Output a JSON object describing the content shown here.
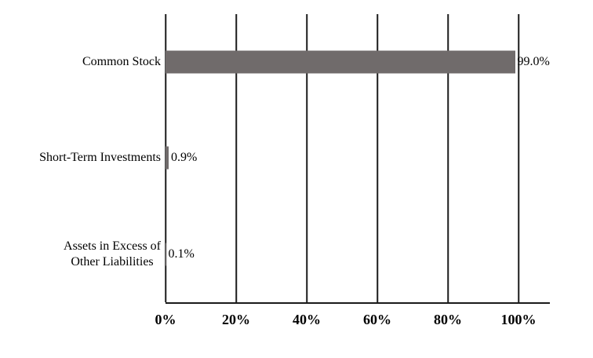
{
  "chart_data": {
    "type": "bar",
    "orientation": "horizontal",
    "title": "",
    "categories": [
      "Common Stock",
      "Short-Term Investments",
      "Assets in Excess of\nOther Liabilities"
    ],
    "values": [
      99.0,
      0.9,
      0.1
    ],
    "value_labels": [
      "99.0%",
      "0.9%",
      "0.1%"
    ],
    "xlim": [
      0,
      100
    ],
    "x_tick_values": [
      0,
      20,
      40,
      60,
      80,
      100
    ],
    "x_tick_labels": [
      "0%",
      "20%",
      "40%",
      "60%",
      "80%",
      "100%"
    ],
    "grid": true,
    "legend": false,
    "bar_color": "#706b6b",
    "axis_color": "#1a1a1a",
    "background_color": "#ffffff"
  }
}
